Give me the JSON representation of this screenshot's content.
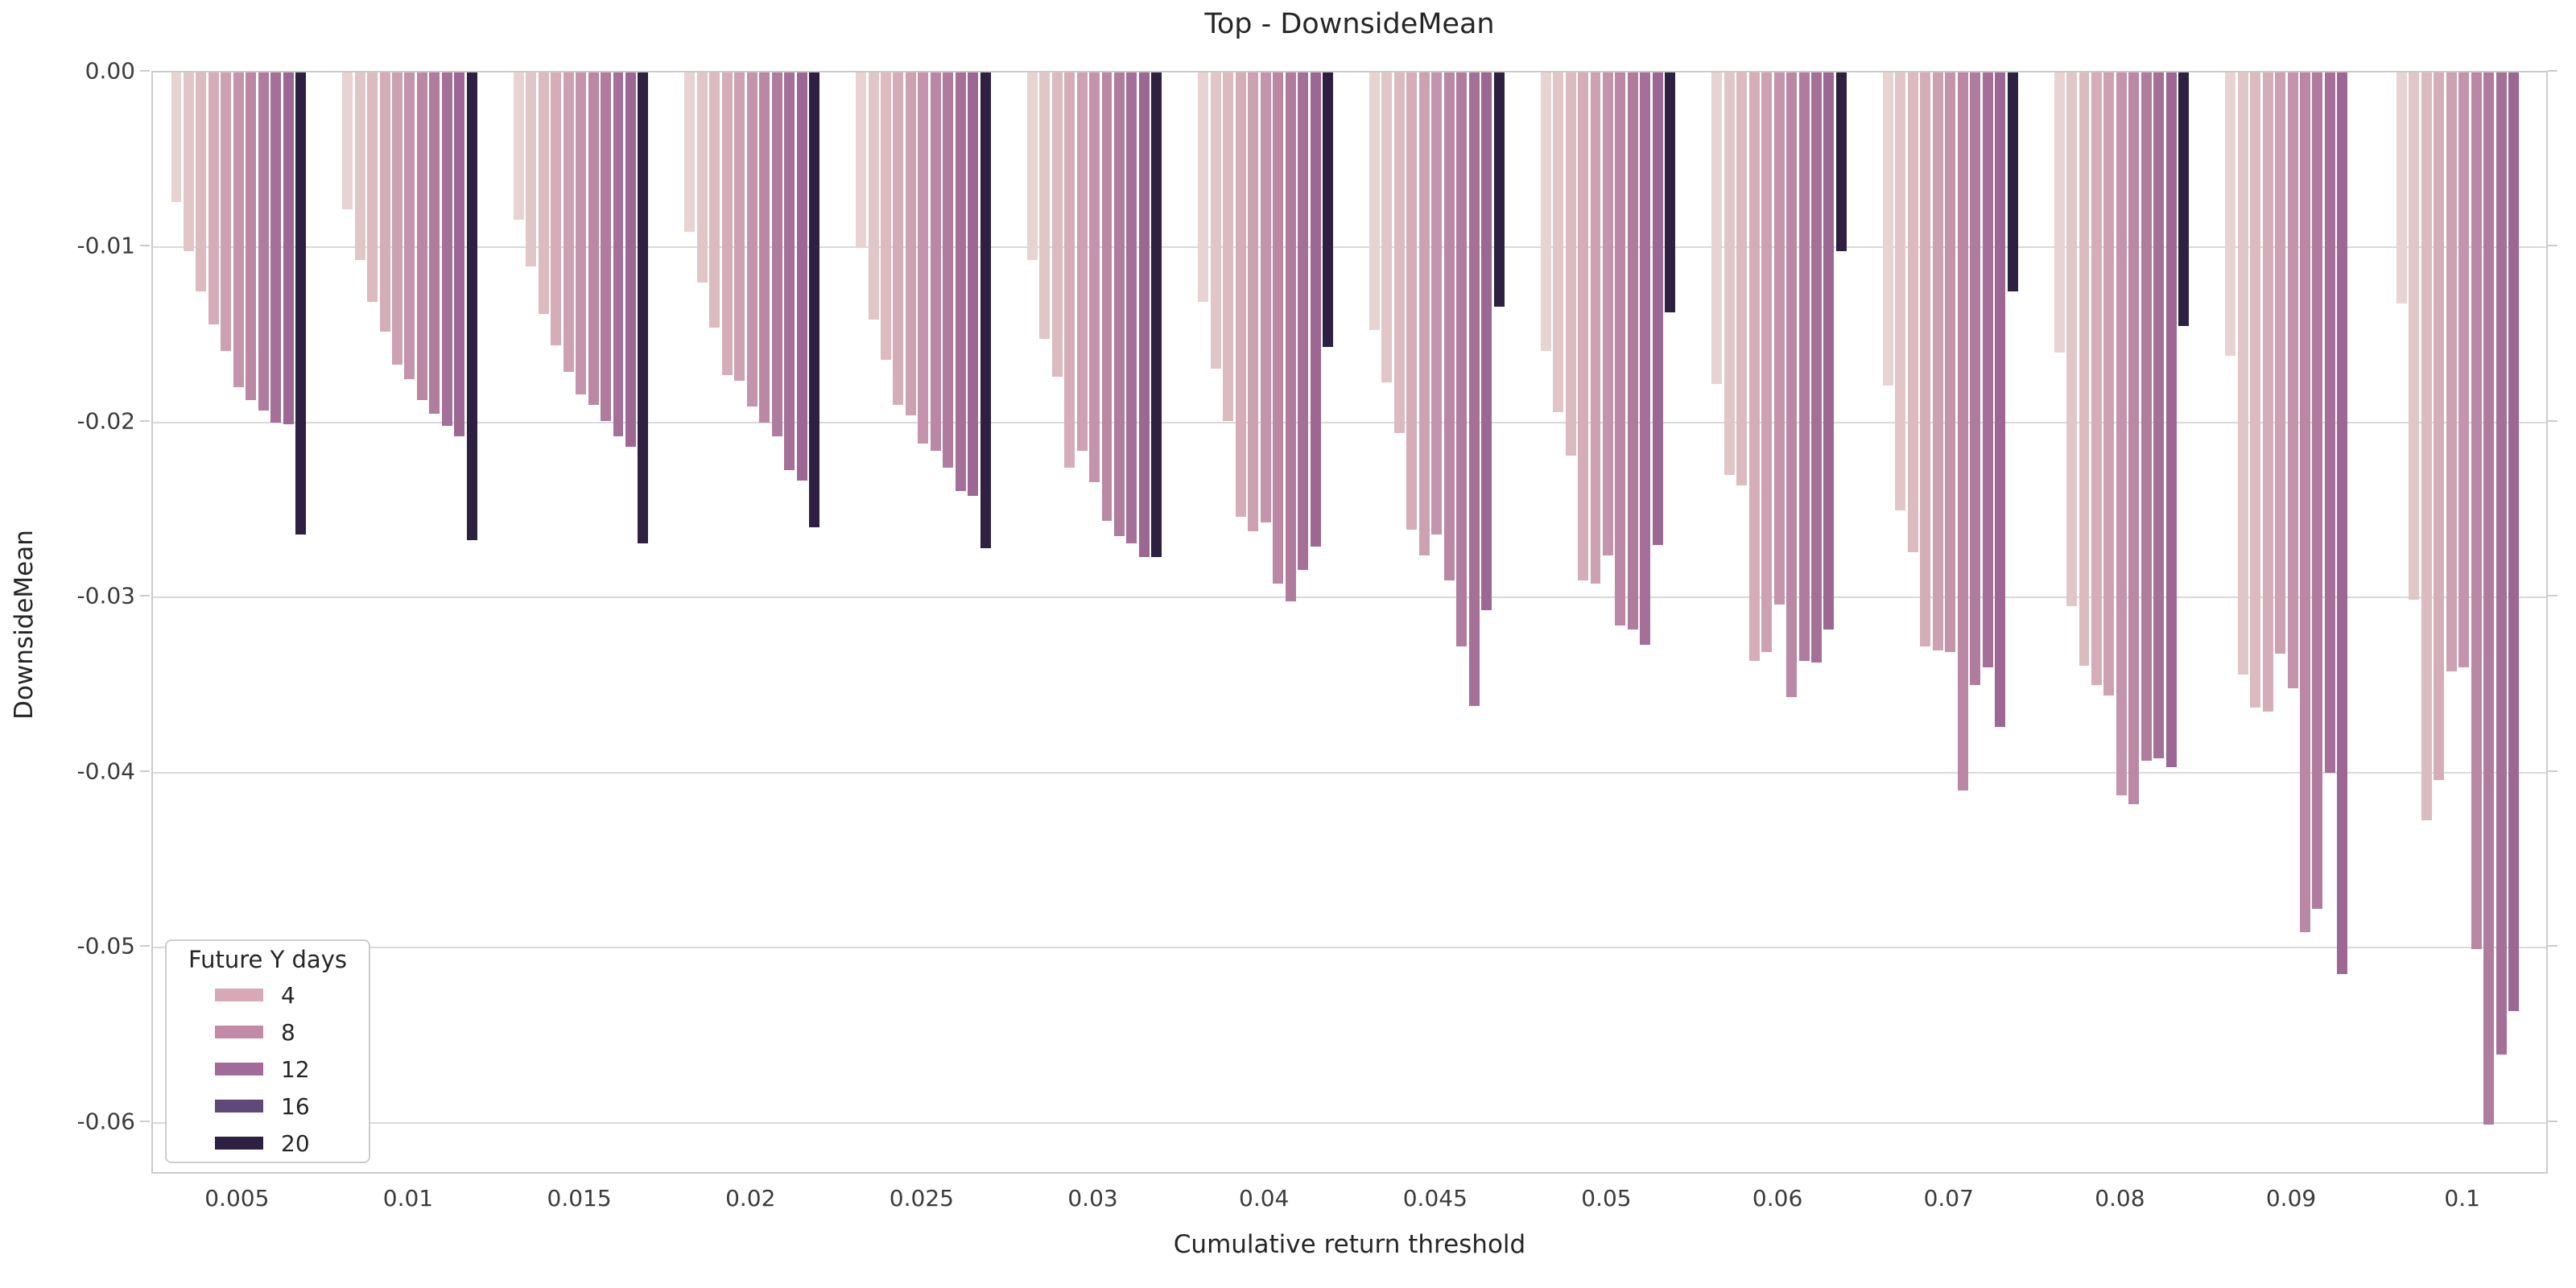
{
  "title": "Top - DownsideMean",
  "xlabel": "Cumulative return threshold",
  "ylabel": "DownsideMean",
  "legend": {
    "title": "Future Y days",
    "entries": [
      {
        "label": "4",
        "color": "#d7a9b6"
      },
      {
        "label": "8",
        "color": "#c389a7"
      },
      {
        "label": "12",
        "color": "#a26a99"
      },
      {
        "label": "16",
        "color": "#5e4a78"
      },
      {
        "label": "20",
        "color": "#2d2040"
      }
    ]
  },
  "chart_data": {
    "type": "bar",
    "title": "Top - DownsideMean",
    "xlabel": "Cumulative return threshold",
    "ylabel": "DownsideMean",
    "grid": true,
    "legend_position": "lower left",
    "ylim": [
      -0.063,
      0
    ],
    "y_ticks": [
      {
        "label": "0.00",
        "value": 0
      },
      {
        "label": "-0.01",
        "value": -0.01
      },
      {
        "label": "-0.02",
        "value": -0.02
      },
      {
        "label": "-0.03",
        "value": -0.03
      },
      {
        "label": "-0.04",
        "value": -0.04
      },
      {
        "label": "-0.05",
        "value": -0.05
      },
      {
        "label": "-0.06",
        "value": -0.06
      }
    ],
    "categories": [
      "0.005",
      "0.01",
      "0.015",
      "0.02",
      "0.025",
      "0.03",
      "0.04",
      "0.045",
      "0.05",
      "0.06",
      "0.07",
      "0.08",
      "0.09",
      "0.1"
    ],
    "bars_per_group": 11,
    "bar_colors": [
      "#e7d3d2",
      "#e1c6c7",
      "#dbbac0",
      "#d4adb9",
      "#cca1b2",
      "#c394ab",
      "#ba88a4",
      "#b07c9e",
      "#a57098",
      "#9d6793",
      "#2d2040"
    ],
    "values": [
      [
        -0.0074,
        -0.0102,
        -0.0125,
        -0.0144,
        -0.0159,
        -0.018,
        -0.0187,
        -0.0193,
        -0.02,
        -0.0201,
        -0.0264
      ],
      [
        -0.0078,
        -0.0107,
        -0.0131,
        -0.0148,
        -0.0167,
        -0.0175,
        -0.0187,
        -0.0195,
        -0.0202,
        -0.0208,
        -0.0267
      ],
      [
        -0.0084,
        -0.0111,
        -0.0138,
        -0.0156,
        -0.0171,
        -0.0184,
        -0.019,
        -0.0199,
        -0.0208,
        -0.0214,
        -0.0269
      ],
      [
        -0.0091,
        -0.012,
        -0.0146,
        -0.0173,
        -0.0176,
        -0.0191,
        -0.02,
        -0.0208,
        -0.0227,
        -0.0233,
        -0.026
      ],
      [
        -0.01,
        -0.0141,
        -0.0164,
        -0.019,
        -0.0196,
        -0.0212,
        -0.0216,
        -0.0226,
        -0.0239,
        -0.0242,
        -0.0272
      ],
      [
        -0.0107,
        -0.0152,
        -0.0174,
        -0.0226,
        -0.0216,
        -0.0234,
        -0.0256,
        -0.0265,
        -0.0269,
        -0.0277,
        -0.0277
      ],
      [
        -0.0131,
        -0.0169,
        -0.0199,
        -0.0254,
        -0.0262,
        -0.0257,
        -0.0292,
        -0.0302,
        -0.0284,
        -0.0271,
        -0.0157
      ],
      [
        -0.0147,
        -0.0177,
        -0.0206,
        -0.0261,
        -0.0276,
        -0.0264,
        -0.029,
        -0.0328,
        -0.0362,
        -0.0307,
        -0.0134
      ],
      [
        -0.0159,
        -0.0194,
        -0.0219,
        -0.029,
        -0.0292,
        -0.0276,
        -0.0316,
        -0.0318,
        -0.0327,
        -0.027,
        -0.0137
      ],
      [
        -0.0178,
        -0.023,
        -0.0236,
        -0.0336,
        -0.0331,
        -0.0304,
        -0.0357,
        -0.0336,
        -0.0337,
        -0.0318,
        -0.0102
      ],
      [
        -0.0179,
        -0.025,
        -0.0274,
        -0.0328,
        -0.033,
        -0.0331,
        -0.041,
        -0.035,
        -0.034,
        -0.0374,
        -0.0125
      ],
      [
        -0.016,
        -0.0305,
        -0.0339,
        -0.035,
        -0.0356,
        -0.0413,
        -0.0418,
        -0.0393,
        -0.0392,
        -0.0397,
        -0.0145
      ],
      [
        -0.0162,
        -0.0344,
        -0.0363,
        -0.0365,
        -0.0332,
        -0.0352,
        -0.0491,
        -0.0478,
        -0.04,
        -0.0515,
        null
      ],
      [
        -0.0132,
        -0.0301,
        -0.0427,
        -0.0404,
        -0.0342,
        -0.034,
        -0.0501,
        -0.0601,
        -0.0561,
        -0.0536,
        null
      ]
    ]
  }
}
